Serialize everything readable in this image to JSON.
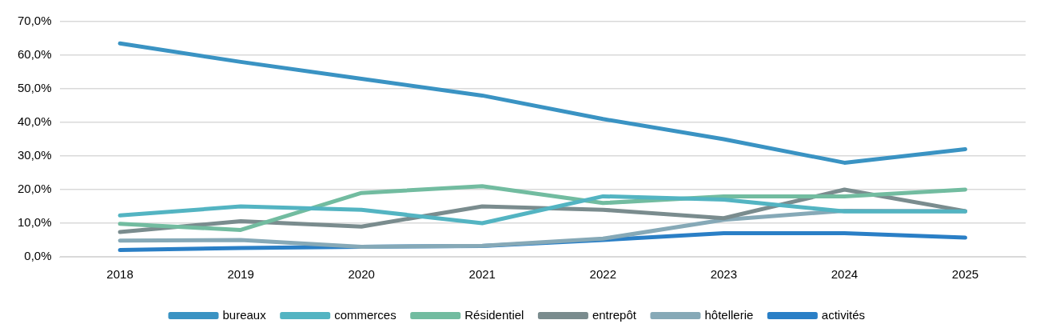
{
  "chart_data": {
    "type": "line",
    "categories": [
      "2018",
      "2019",
      "2020",
      "2021",
      "2022",
      "2023",
      "2024",
      "2025"
    ],
    "series": [
      {
        "name": "bureaux",
        "color": "#3a93c3",
        "values": [
          63.5,
          58,
          53,
          48,
          41,
          35,
          28,
          32
        ]
      },
      {
        "name": "commerces",
        "color": "#53b4c2",
        "values": [
          12.3,
          15,
          14,
          10,
          18,
          17,
          13.5,
          13.5
        ]
      },
      {
        "name": "Résidentiel",
        "color": "#72bca0",
        "values": [
          9.8,
          8,
          19,
          21,
          16,
          18,
          18,
          20
        ]
      },
      {
        "name": "entrepôt",
        "color": "#7a8c8e",
        "values": [
          7.4,
          10.6,
          9,
          15,
          14,
          11.5,
          20,
          13.6
        ]
      },
      {
        "name": "hôtellerie",
        "color": "#86a9b7",
        "values": [
          4.8,
          5,
          3,
          3.3,
          5.4,
          11,
          13.7,
          13.6
        ]
      },
      {
        "name": "activités",
        "color": "#2a7fc6",
        "values": [
          2,
          2.6,
          3,
          3.2,
          5,
          7,
          7,
          5.7
        ]
      }
    ],
    "ylim": [
      0,
      70
    ],
    "yticks": [
      {
        "value": 0,
        "label": "0,0%"
      },
      {
        "value": 10,
        "label": "10,0%"
      },
      {
        "value": 20,
        "label": "20,0%"
      },
      {
        "value": 30,
        "label": "30,0%"
      },
      {
        "value": 40,
        "label": "40,0%"
      },
      {
        "value": 50,
        "label": "50,0%"
      },
      {
        "value": 60,
        "label": "60,0%"
      },
      {
        "value": 70,
        "label": "70,0%"
      }
    ],
    "grid": "y",
    "legend": "bottom",
    "marker": "none",
    "line_style": "solid"
  }
}
